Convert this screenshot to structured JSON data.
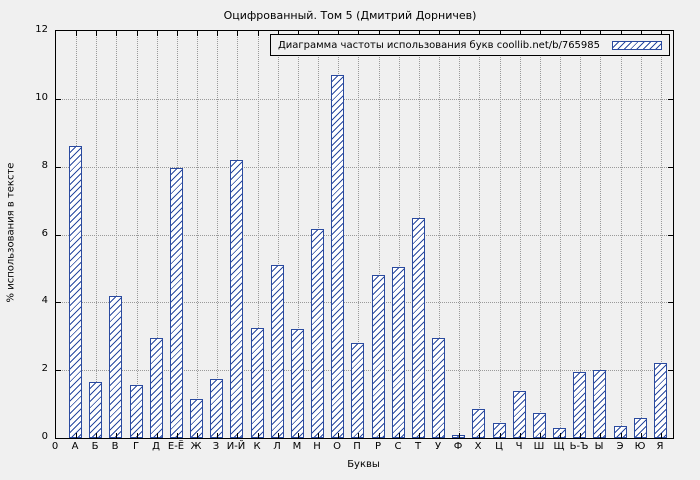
{
  "chart_data": {
    "type": "bar",
    "title": "Оцифрованный. Том 5 (Дмитрий Дорничев)",
    "legend_label": "Диаграмма частоты использования букв coollib.net/b/765985",
    "legend_position": "top-right",
    "xlabel": "Буквы",
    "ylabel": "% использования в тексте",
    "ylim": [
      0,
      12
    ],
    "ytick_step": 2,
    "origin_label": "0",
    "grid": true,
    "categories": [
      "А",
      "Б",
      "В",
      "Г",
      "Д",
      "Е-Ё",
      "Ж",
      "З",
      "И-Й",
      "К",
      "Л",
      "М",
      "Н",
      "О",
      "П",
      "Р",
      "С",
      "Т",
      "У",
      "Ф",
      "Х",
      "Ц",
      "Ч",
      "Ш",
      "Щ",
      "Ь-Ъ",
      "Ы",
      "Э",
      "Ю",
      "Я"
    ],
    "values": [
      8.6,
      1.65,
      4.2,
      1.55,
      2.95,
      7.95,
      1.15,
      1.75,
      8.2,
      3.25,
      5.1,
      3.2,
      6.15,
      10.7,
      2.8,
      4.8,
      5.05,
      6.5,
      2.95,
      0.1,
      0.85,
      0.45,
      1.4,
      0.75,
      0.3,
      1.95,
      2.0,
      0.35,
      0.6,
      2.2
    ],
    "colors": {
      "bar_stroke": "#2a4a9f",
      "bar_fill": "#ffffff",
      "grid": "#9a9a9a",
      "axis": "#000000",
      "background": "#f0f0f0"
    }
  }
}
